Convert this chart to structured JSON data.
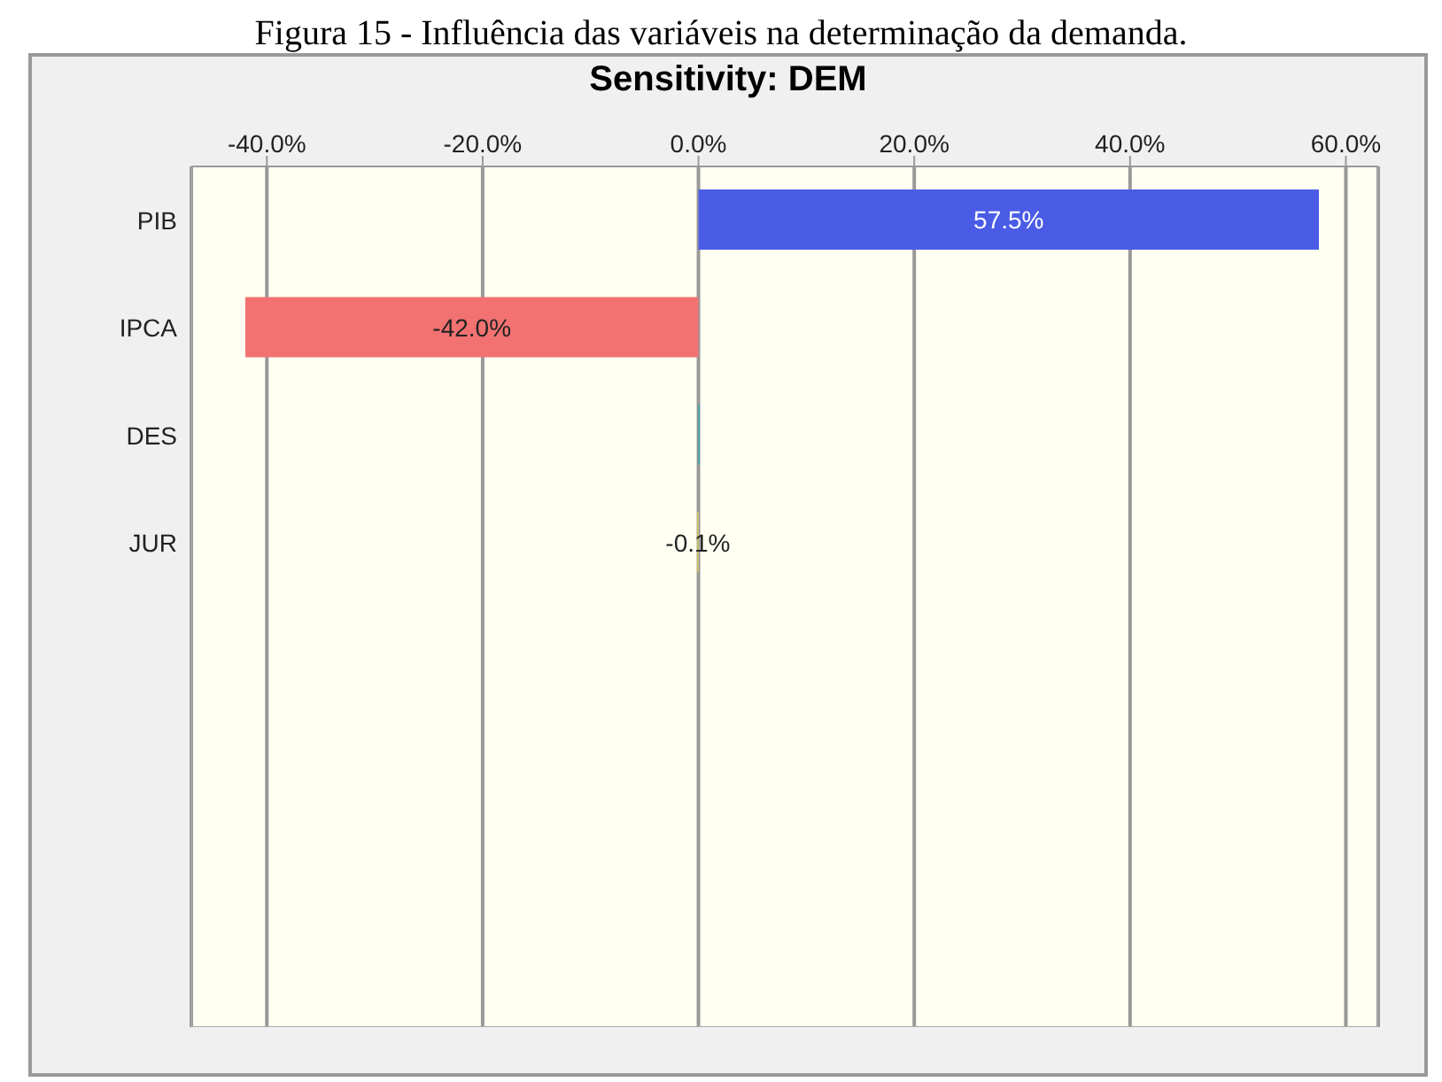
{
  "chart_data": {
    "type": "bar",
    "orientation": "horizontal",
    "title": "Sensitivity: DEM",
    "annotations": [
      "Figura 15 - Influência das variáveis na determinação da demanda."
    ],
    "categories": [
      "PIB",
      "IPCA",
      "DES",
      "JUR"
    ],
    "values": [
      57.5,
      -42.0,
      0.1,
      -0.1
    ],
    "colors": [
      "#4a5ce6",
      "#f27272",
      "#20a8a8",
      "#e8d44a"
    ],
    "value_labels": [
      "57.5%",
      "-42.0%",
      null,
      "-0.1%"
    ],
    "xlim": [
      -47,
      63
    ],
    "xticks": [
      {
        "value": -40,
        "label": "-40.0%"
      },
      {
        "value": -20,
        "label": "-20.0%"
      },
      {
        "value": 0,
        "label": "0.0%"
      },
      {
        "value": 20,
        "label": "20.0%"
      },
      {
        "value": 40,
        "label": "40.0%"
      },
      {
        "value": 60,
        "label": "60.0%"
      }
    ],
    "grid": "x"
  }
}
